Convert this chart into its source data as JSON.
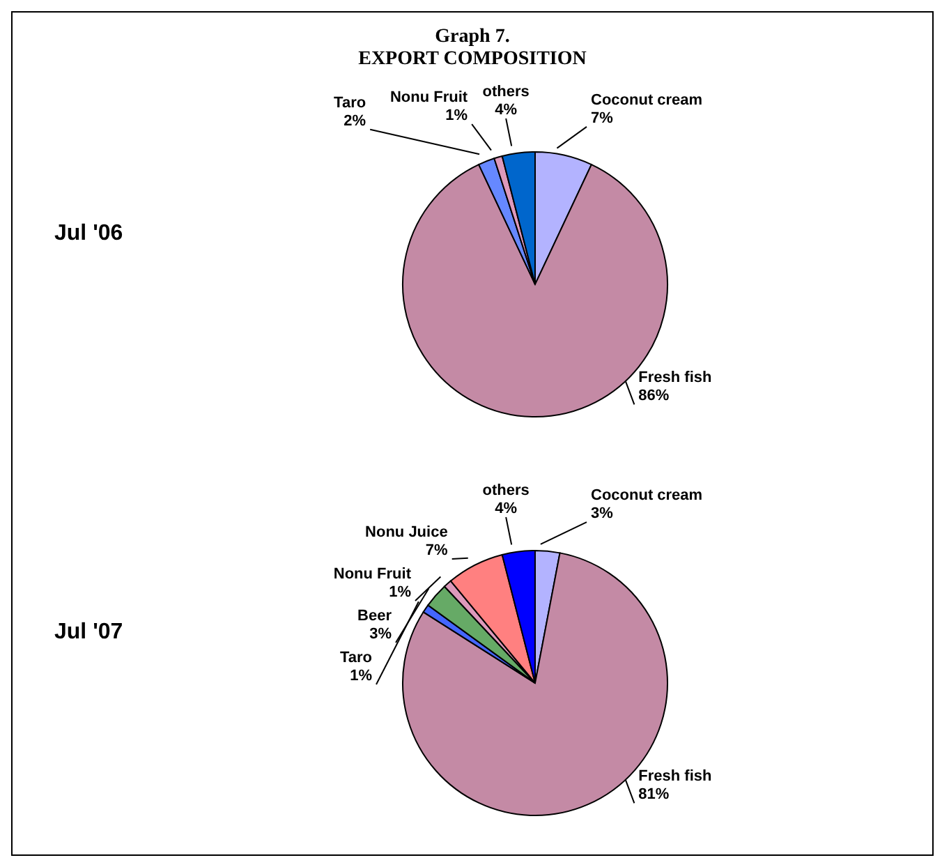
{
  "chart_data": [
    {
      "type": "pie",
      "title": "Graph 7.",
      "subtitle": "EXPORT COMPOSITION",
      "ylabel": "Jul '06",
      "categories": [
        "Coconut cream",
        "Fresh fish",
        "Taro",
        "Nonu Fruit",
        "others"
      ],
      "values": [
        7,
        86,
        2,
        1,
        4
      ],
      "value_labels": [
        "7%",
        "86%",
        "2%",
        "1%",
        "4%"
      ],
      "colors": [
        "#b3b3ff",
        "#c48aa5",
        "#6688ff",
        "#dd99bb",
        "#0066cc"
      ]
    },
    {
      "type": "pie",
      "ylabel": "Jul '07",
      "categories": [
        "Coconut cream",
        "Fresh fish",
        "Taro",
        "Beer",
        "Nonu Fruit",
        "Nonu Juice",
        "others"
      ],
      "values": [
        3,
        81,
        1,
        3,
        1,
        7,
        4
      ],
      "value_labels": [
        "3%",
        "81%",
        "1%",
        "3%",
        "1%",
        "7%",
        "4%"
      ],
      "colors": [
        "#b3b3ff",
        "#c48aa5",
        "#4466ff",
        "#66aa66",
        "#dd99bb",
        "#ff8080",
        "#0000ff"
      ]
    }
  ]
}
